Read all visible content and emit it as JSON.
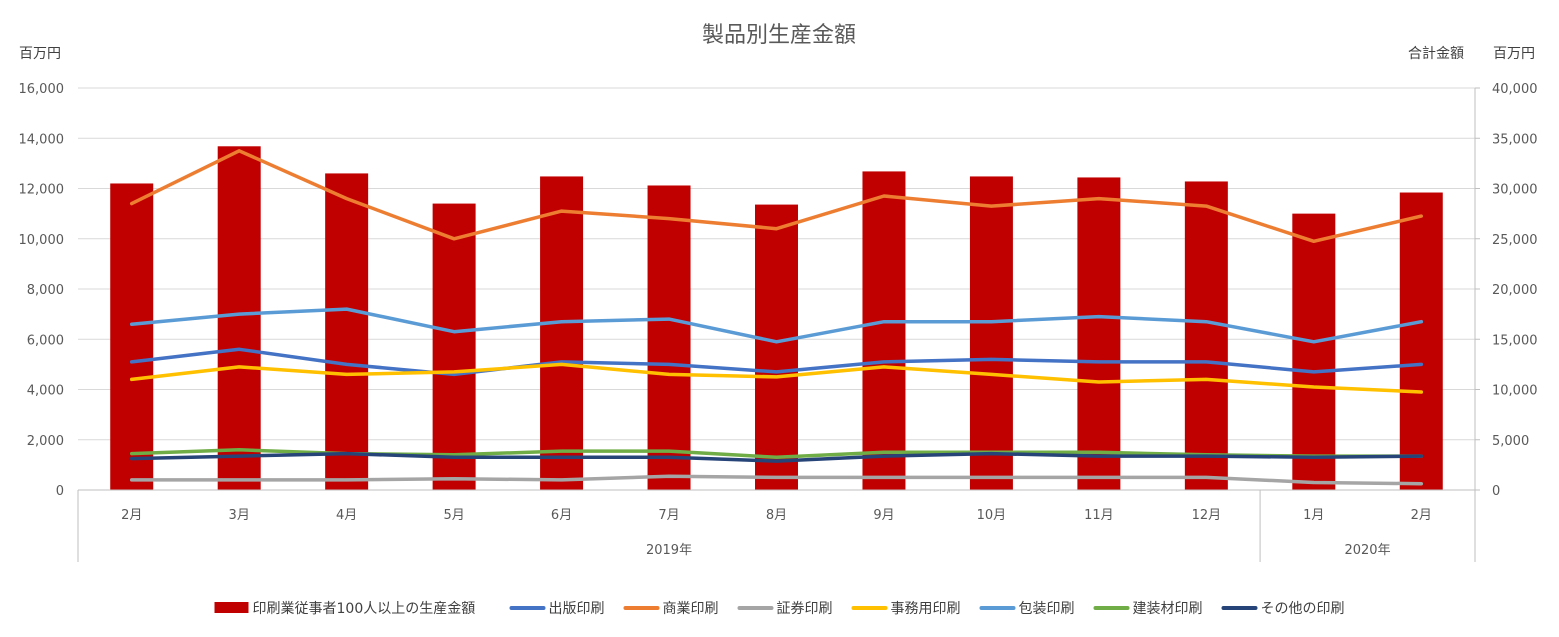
{
  "chart_data": {
    "type": "bar",
    "title": "製品別生産金額",
    "y_left_unit": "百万円",
    "y_right_label": "合計金額",
    "y_right_unit": "百万円",
    "ylim_left": [
      0,
      16000
    ],
    "ylim_right": [
      0,
      40000
    ],
    "yticks_left": [
      "0",
      "2,000",
      "4,000",
      "6,000",
      "8,000",
      "10,000",
      "12,000",
      "14,000",
      "16,000"
    ],
    "yticks_right": [
      "0",
      "5,000",
      "10,000",
      "15,000",
      "20,000",
      "25,000",
      "30,000",
      "35,000",
      "40,000"
    ],
    "categories": [
      "2月",
      "3月",
      "4月",
      "5月",
      "6月",
      "7月",
      "8月",
      "9月",
      "10月",
      "11月",
      "12月",
      "1月",
      "2月"
    ],
    "year_groups": [
      {
        "label": "2019年",
        "count": 11
      },
      {
        "label": "2020年",
        "count": 2
      }
    ],
    "grid": true,
    "legend_position": "bottom",
    "bar_series": {
      "name": "印刷業従事者100人以上の生産金額",
      "axis": "right",
      "color": "#c00000",
      "values": [
        30500,
        34200,
        31500,
        28500,
        31200,
        30300,
        28400,
        31700,
        31200,
        31100,
        30700,
        27500,
        29600
      ]
    },
    "series": [
      {
        "name": "出版印刷",
        "color": "#4472c4",
        "values": [
          5100,
          5600,
          5000,
          4600,
          5100,
          5000,
          4700,
          5100,
          5200,
          5100,
          5100,
          4700,
          5000
        ]
      },
      {
        "name": "商業印刷",
        "color": "#ed7d31",
        "values": [
          11400,
          13500,
          11600,
          10000,
          11100,
          10800,
          10400,
          11700,
          11300,
          11600,
          11300,
          9900,
          10900
        ]
      },
      {
        "name": "証券印刷",
        "color": "#a5a5a5",
        "values": [
          400,
          400,
          400,
          450,
          400,
          550,
          500,
          500,
          500,
          500,
          500,
          300,
          250
        ]
      },
      {
        "name": "事務用印刷",
        "color": "#ffc000",
        "values": [
          4400,
          4900,
          4600,
          4700,
          5000,
          4600,
          4500,
          4900,
          4600,
          4300,
          4400,
          4100,
          3900
        ]
      },
      {
        "name": "包装印刷",
        "color": "#5b9bd5",
        "values": [
          6600,
          7000,
          7200,
          6300,
          6700,
          6800,
          5900,
          6700,
          6700,
          6900,
          6700,
          5900,
          6700
        ]
      },
      {
        "name": "建装材印刷",
        "color": "#70ad47",
        "values": [
          1450,
          1600,
          1450,
          1400,
          1550,
          1550,
          1300,
          1500,
          1500,
          1500,
          1400,
          1350,
          1350
        ]
      },
      {
        "name": "その他の印刷",
        "color": "#264478",
        "values": [
          1250,
          1350,
          1450,
          1300,
          1300,
          1300,
          1150,
          1350,
          1450,
          1350,
          1350,
          1300,
          1350
        ]
      }
    ]
  }
}
